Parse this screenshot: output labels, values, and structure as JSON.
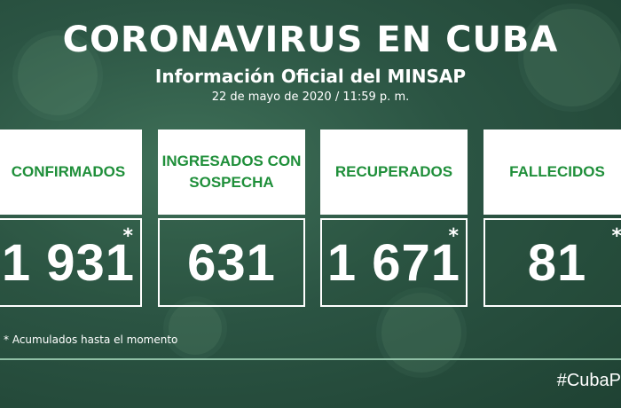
{
  "header": {
    "title": "CORONAVIRUS EN CUBA",
    "subtitle": "Información Oficial del MINSAP",
    "date": "22 de mayo de 2020 / 11:59 p. m."
  },
  "cards": [
    {
      "label": "CONFIRMADOS",
      "value": "1 931",
      "star": "*"
    },
    {
      "label": "INGRESADOS CON SOSPECHA",
      "value": "631",
      "star": ""
    },
    {
      "label": "RECUPERADOS",
      "value": "1 671",
      "star": "*"
    },
    {
      "label": "FALLECIDOS",
      "value": "81",
      "star": "*"
    }
  ],
  "footnote": "* Acumulados hasta el momento",
  "hashtag": "#CubaP",
  "colors": {
    "accent": "#1f8f3a",
    "background": "#2b5443"
  }
}
